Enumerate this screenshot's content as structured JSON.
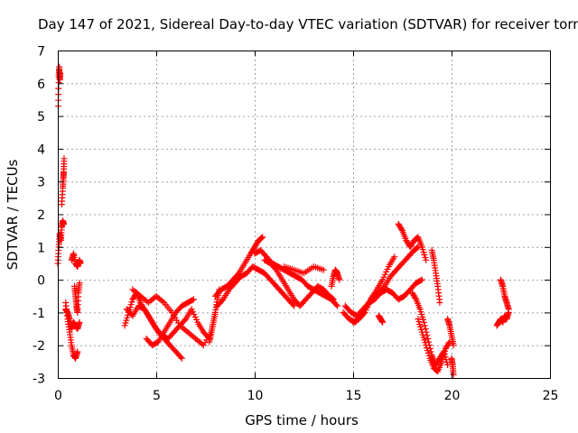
{
  "chart_data": {
    "type": "scatter",
    "title": "Day 147 of 2021, Sidereal Day-to-day VTEC variation (SDTVAR) for receiver torn",
    "xlabel": "GPS time / hours",
    "ylabel": "SDTVAR / TECUs",
    "xlim": [
      0,
      25
    ],
    "ylim": [
      -3,
      7
    ],
    "xticks": [
      0,
      5,
      10,
      15,
      20,
      25
    ],
    "yticks": [
      -3,
      -2,
      -1,
      0,
      1,
      2,
      3,
      4,
      5,
      6,
      7
    ],
    "grid": true,
    "marker": "+",
    "color": "#ff0000",
    "series": [
      {
        "name": "SDTVAR",
        "segments": [
          {
            "x": [
              0.0,
              0.05,
              0.1,
              0.15,
              0.2,
              0.25,
              0.3
            ],
            "y": [
              0.5,
              1.0,
              1.4,
              1.2,
              1.6,
              1.8,
              1.7
            ]
          },
          {
            "x": [
              0.02,
              0.05,
              0.08,
              0.1,
              0.12
            ],
            "y": [
              5.3,
              6.2,
              6.5,
              6.1,
              6.3
            ]
          },
          {
            "x": [
              0.2,
              0.25,
              0.28,
              0.3,
              0.32
            ],
            "y": [
              2.3,
              2.8,
              3.1,
              3.3,
              3.7
            ]
          },
          {
            "x": [
              0.4,
              0.5,
              0.6,
              0.7,
              0.8,
              0.9,
              1.0
            ],
            "y": [
              -0.7,
              -1.2,
              -1.6,
              -2.0,
              -2.3,
              -2.4,
              -2.2
            ]
          },
          {
            "x": [
              0.4,
              0.5,
              0.6,
              0.7,
              0.8,
              0.9,
              1.0,
              1.1
            ],
            "y": [
              -0.9,
              -1.0,
              -1.2,
              -1.5,
              -1.3,
              -1.4,
              -1.5,
              -1.3
            ]
          },
          {
            "x": [
              0.7,
              0.8,
              0.9,
              1.0,
              1.1,
              1.15
            ],
            "y": [
              0.6,
              0.8,
              0.5,
              0.4,
              0.6,
              0.5
            ]
          },
          {
            "x": [
              0.85,
              0.9,
              0.95,
              1.0,
              1.05,
              1.1
            ],
            "y": [
              -0.2,
              -0.5,
              -0.8,
              -1.0,
              -0.4,
              -0.1
            ]
          },
          {
            "x": [
              3.4,
              3.6,
              3.8,
              4.0,
              4.2,
              4.5,
              4.8,
              5.1,
              5.4,
              5.7,
              6.0,
              6.3
            ],
            "y": [
              -1.4,
              -1.0,
              -0.6,
              -0.4,
              -0.7,
              -1.0,
              -1.3,
              -1.6,
              -1.8,
              -2.0,
              -2.2,
              -2.4
            ]
          },
          {
            "x": [
              3.5,
              3.8,
              4.1,
              4.4,
              4.7,
              5.0,
              5.3,
              5.6,
              5.9,
              6.2,
              6.5,
              6.8,
              7.1,
              7.4,
              7.7
            ],
            "y": [
              -0.9,
              -1.1,
              -0.8,
              -0.9,
              -1.2,
              -1.5,
              -1.7,
              -1.8,
              -1.6,
              -1.4,
              -1.2,
              -0.9,
              -1.3,
              -1.6,
              -1.8
            ]
          },
          {
            "x": [
              3.8,
              4.2,
              4.6,
              5.0,
              5.4,
              5.8,
              6.2,
              6.6,
              7.0,
              7.4,
              7.8
            ],
            "y": [
              -0.3,
              -0.5,
              -0.7,
              -0.5,
              -0.7,
              -1.0,
              -1.4,
              -1.6,
              -1.8,
              -2.0,
              -1.6
            ]
          },
          {
            "x": [
              4.5,
              4.8,
              5.1,
              5.4,
              5.7,
              6.0,
              6.3,
              6.6,
              6.9
            ],
            "y": [
              -1.8,
              -2.0,
              -1.9,
              -1.6,
              -1.3,
              -1.0,
              -0.8,
              -0.7,
              -0.6
            ]
          },
          {
            "x": [
              7.7,
              7.8,
              7.9,
              8.0,
              8.1,
              8.2
            ],
            "y": [
              -1.9,
              -1.6,
              -1.3,
              -1.0,
              -0.6,
              -0.3
            ]
          },
          {
            "x": [
              8.0,
              8.3,
              8.6,
              8.9,
              9.2,
              9.5,
              9.8,
              10.0,
              10.2,
              10.4
            ],
            "y": [
              -0.5,
              -0.3,
              -0.2,
              0.0,
              0.2,
              0.5,
              0.8,
              1.0,
              1.2,
              1.3
            ]
          },
          {
            "x": [
              8.1,
              8.4,
              8.7,
              9.0,
              9.3,
              9.6,
              9.9,
              10.2,
              10.5,
              10.8,
              11.1,
              11.4,
              11.7,
              12.0
            ],
            "y": [
              -0.8,
              -0.6,
              -0.3,
              -0.1,
              0.1,
              0.2,
              0.4,
              0.3,
              0.2,
              0.0,
              -0.2,
              -0.4,
              -0.6,
              -0.8
            ]
          },
          {
            "x": [
              10.0,
              10.3,
              10.6,
              10.9,
              11.2,
              11.5,
              11.8,
              12.1,
              12.4,
              12.7,
              13.0,
              13.3,
              13.6,
              13.9,
              14.2
            ],
            "y": [
              0.8,
              0.9,
              0.7,
              0.5,
              0.4,
              0.3,
              0.2,
              0.1,
              0.0,
              -0.2,
              -0.3,
              -0.4,
              -0.5,
              -0.6,
              -0.8
            ]
          },
          {
            "x": [
              10.5,
              10.8,
              11.1,
              11.4,
              11.7,
              12.0,
              12.3,
              12.6,
              12.9,
              13.2,
              13.5,
              13.8,
              14.0
            ],
            "y": [
              0.6,
              0.5,
              0.3,
              0.0,
              -0.3,
              -0.6,
              -0.8,
              -0.6,
              -0.4,
              -0.2,
              -0.3,
              -0.5,
              -0.6
            ]
          },
          {
            "x": [
              11.5,
              12.0,
              12.5,
              13.0,
              13.5
            ],
            "y": [
              0.4,
              0.3,
              0.2,
              0.4,
              0.3
            ]
          },
          {
            "x": [
              13.9,
              14.0,
              14.1,
              14.2,
              14.3
            ],
            "y": [
              -0.2,
              0.1,
              0.3,
              0.2,
              0.0
            ]
          },
          {
            "x": [
              14.5,
              14.8,
              15.1,
              15.4,
              15.7,
              16.0,
              16.3,
              16.6,
              16.9,
              17.2,
              17.5,
              17.8,
              18.1,
              18.3
            ],
            "y": [
              -1.0,
              -1.2,
              -1.3,
              -1.1,
              -0.8,
              -0.5,
              -0.4,
              -0.2,
              0.1,
              0.3,
              0.5,
              0.7,
              0.9,
              1.0
            ]
          },
          {
            "x": [
              14.6,
              14.9,
              15.2,
              15.5,
              15.8,
              16.1,
              16.4,
              16.7,
              17.0,
              17.3,
              17.6,
              17.9,
              18.2,
              18.5
            ],
            "y": [
              -0.8,
              -1.0,
              -1.1,
              -0.9,
              -0.7,
              -0.6,
              -0.4,
              -0.3,
              -0.4,
              -0.6,
              -0.5,
              -0.3,
              -0.1,
              0.0
            ]
          },
          {
            "x": [
              15.0,
              15.3,
              15.6,
              15.9,
              16.2,
              16.5,
              16.8,
              17.1
            ],
            "y": [
              -1.3,
              -1.2,
              -1.0,
              -0.6,
              -0.3,
              0.0,
              0.4,
              0.7
            ]
          },
          {
            "x": [
              16.3,
              16.4,
              16.5
            ],
            "y": [
              -1.1,
              -1.2,
              -1.3
            ]
          },
          {
            "x": [
              17.3,
              17.5,
              17.7,
              17.9,
              18.1,
              18.3,
              18.5,
              18.7
            ],
            "y": [
              1.7,
              1.5,
              1.2,
              1.0,
              1.2,
              1.3,
              1.0,
              0.6
            ]
          },
          {
            "x": [
              18.0,
              18.2,
              18.4,
              18.6,
              18.8,
              19.0,
              19.2,
              19.4,
              19.6,
              19.8
            ],
            "y": [
              -0.4,
              -0.6,
              -0.9,
              -1.3,
              -1.8,
              -2.3,
              -2.6,
              -2.4,
              -2.2,
              -2.6
            ]
          },
          {
            "x": [
              18.3,
              18.5,
              18.7,
              18.9,
              19.1,
              19.3,
              19.5,
              19.7,
              19.9
            ],
            "y": [
              -1.2,
              -1.6,
              -2.0,
              -2.4,
              -2.7,
              -2.8,
              -2.5,
              -2.1,
              -1.9
            ]
          },
          {
            "x": [
              19.0,
              19.1,
              19.2,
              19.3,
              19.4
            ],
            "y": [
              0.9,
              0.6,
              0.2,
              -0.2,
              -0.7
            ]
          },
          {
            "x": [
              19.8,
              19.9,
              20.0,
              20.1
            ],
            "y": [
              -1.2,
              -1.4,
              -1.7,
              -2.0
            ]
          },
          {
            "x": [
              20.0,
              20.05,
              20.1
            ],
            "y": [
              -2.4,
              -2.6,
              -2.9
            ]
          },
          {
            "x": [
              22.3,
              22.4,
              22.5,
              22.6,
              22.7,
              22.8,
              22.9
            ],
            "y": [
              -1.4,
              -1.3,
              -1.2,
              -1.3,
              -1.1,
              -1.2,
              -1.0
            ]
          },
          {
            "x": [
              22.5,
              22.6,
              22.7,
              22.8,
              22.9
            ],
            "y": [
              0.0,
              -0.2,
              -0.5,
              -0.7,
              -0.9
            ]
          }
        ]
      }
    ]
  }
}
